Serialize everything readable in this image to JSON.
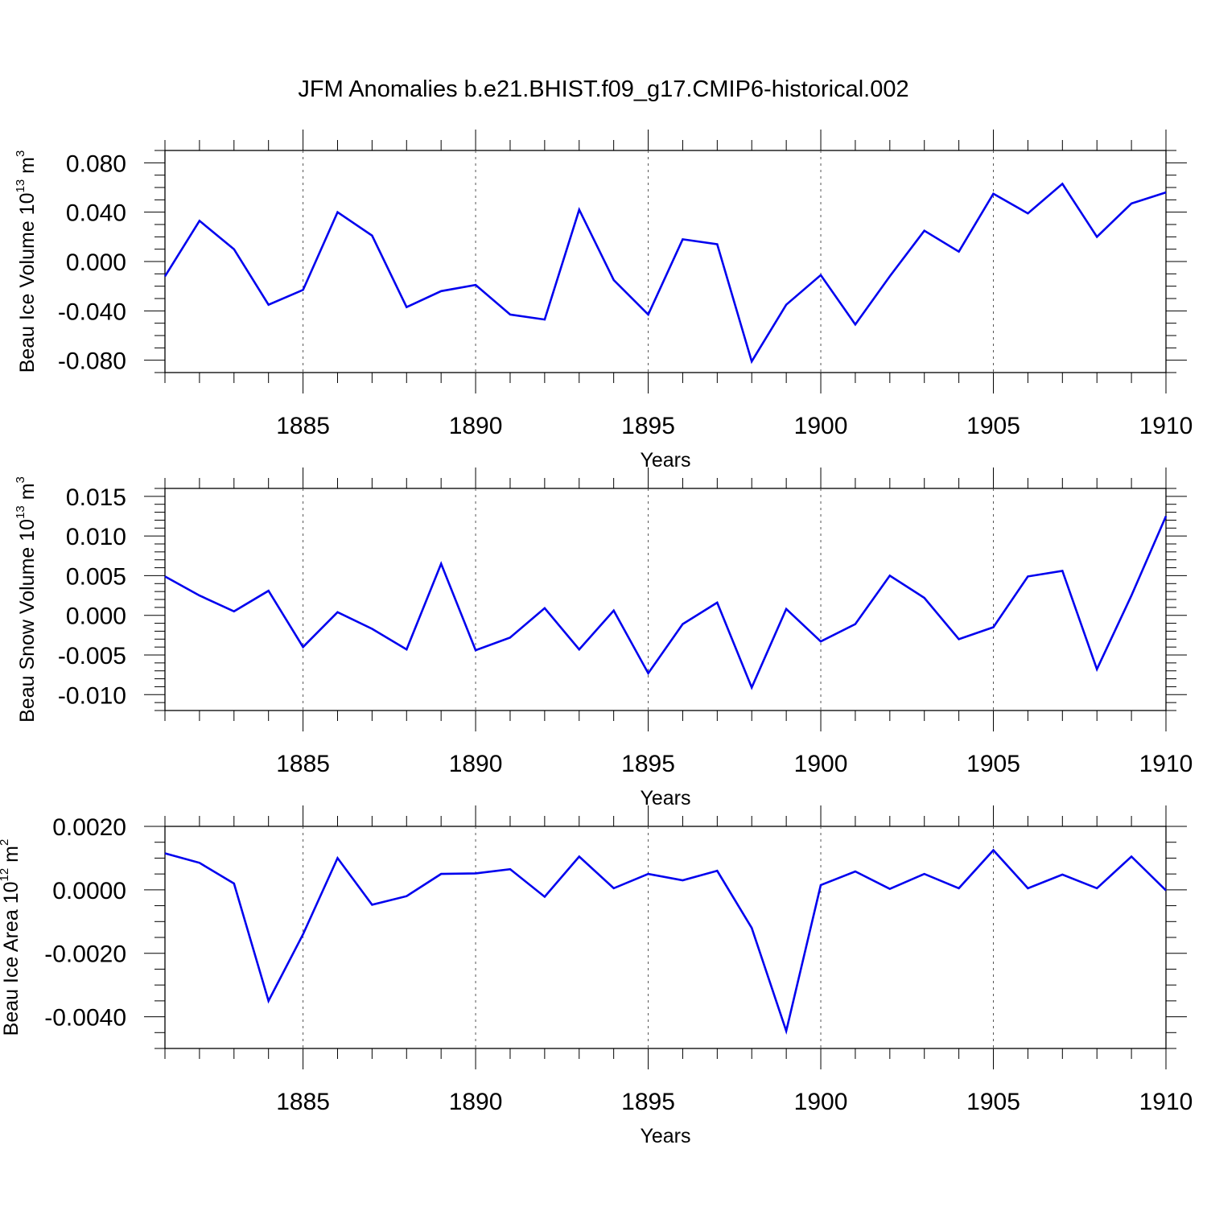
{
  "figure": {
    "title": "JFM Anomalies b.e21.BHIST.f09_g17.CMIP6-historical.002"
  },
  "chart_data": [
    {
      "type": "line",
      "xlabel": "Years",
      "ylabel_main": "Beau Ice Volume 10",
      "ylabel_exp": "13",
      "ylabel_unit": " m",
      "ylabel_unit_exp": "3",
      "xlim": [
        1881,
        1910
      ],
      "ylim": [
        -0.09,
        0.09
      ],
      "x_ticks": [
        1885,
        1890,
        1895,
        1900,
        1905,
        1910
      ],
      "x_tick_labels": [
        "1885",
        "1890",
        "1895",
        "1900",
        "1905",
        "1910"
      ],
      "y_ticks": [
        -0.08,
        -0.04,
        0.0,
        0.04,
        0.08
      ],
      "y_tick_labels": [
        "-0.080",
        "-0.040",
        "0.000",
        "0.040",
        "0.080"
      ],
      "y_minor_step": 0.01,
      "grid": "x-dashed",
      "color": "#0000ee",
      "x": [
        1881,
        1882,
        1883,
        1884,
        1885,
        1886,
        1887,
        1888,
        1889,
        1890,
        1891,
        1892,
        1893,
        1894,
        1895,
        1896,
        1897,
        1898,
        1899,
        1900,
        1901,
        1902,
        1903,
        1904,
        1905,
        1906,
        1907,
        1908,
        1909,
        1910
      ],
      "values": [
        -0.012,
        0.033,
        0.01,
        -0.035,
        -0.023,
        0.04,
        0.021,
        -0.037,
        -0.024,
        -0.019,
        -0.043,
        -0.047,
        0.042,
        -0.015,
        -0.043,
        0.018,
        0.014,
        -0.081,
        -0.035,
        -0.011,
        -0.051,
        -0.012,
        0.025,
        0.008,
        0.055,
        0.039,
        0.063,
        0.02,
        0.047,
        0.056
      ]
    },
    {
      "type": "line",
      "xlabel": "Years",
      "ylabel_main": "Beau Snow Volume 10",
      "ylabel_exp": "13",
      "ylabel_unit": " m",
      "ylabel_unit_exp": "3",
      "xlim": [
        1881,
        1910
      ],
      "ylim": [
        -0.012,
        0.016
      ],
      "x_ticks": [
        1885,
        1890,
        1895,
        1900,
        1905,
        1910
      ],
      "x_tick_labels": [
        "1885",
        "1890",
        "1895",
        "1900",
        "1905",
        "1910"
      ],
      "y_ticks": [
        -0.01,
        -0.005,
        0.0,
        0.005,
        0.01,
        0.015
      ],
      "y_tick_labels": [
        "-0.010",
        "-0.005",
        "0.000",
        "0.005",
        "0.010",
        "0.015"
      ],
      "y_minor_step": 0.001,
      "grid": "x-dashed",
      "color": "#0000ee",
      "x": [
        1881,
        1882,
        1883,
        1884,
        1885,
        1886,
        1887,
        1888,
        1889,
        1890,
        1891,
        1892,
        1893,
        1894,
        1895,
        1896,
        1897,
        1898,
        1899,
        1900,
        1901,
        1902,
        1903,
        1904,
        1905,
        1906,
        1907,
        1908,
        1909,
        1910
      ],
      "values": [
        0.0049,
        0.0025,
        0.0005,
        0.0031,
        -0.004,
        0.0004,
        -0.0017,
        -0.0043,
        0.0065,
        -0.0044,
        -0.0028,
        0.0009,
        -0.0043,
        0.0006,
        -0.0073,
        -0.0011,
        0.0016,
        -0.0091,
        0.0008,
        -0.0033,
        -0.0011,
        0.005,
        0.0022,
        -0.003,
        -0.0015,
        0.0049,
        0.0056,
        -0.0068,
        0.0025,
        0.0125
      ]
    },
    {
      "type": "line",
      "xlabel": "Years",
      "ylabel_main": "Beau Ice Area 10",
      "ylabel_exp": "12",
      "ylabel_unit": " m",
      "ylabel_unit_exp": "2",
      "xlim": [
        1881,
        1910
      ],
      "ylim": [
        -0.005,
        0.002
      ],
      "x_ticks": [
        1885,
        1890,
        1895,
        1900,
        1905,
        1910
      ],
      "x_tick_labels": [
        "1885",
        "1890",
        "1895",
        "1900",
        "1905",
        "1910"
      ],
      "y_ticks": [
        -0.004,
        -0.002,
        0.0,
        0.002
      ],
      "y_tick_labels": [
        "-0.0040",
        "-0.0020",
        "0.0000",
        "0.0020"
      ],
      "y_minor_step": 0.0005,
      "grid": "x-dashed",
      "color": "#0000ee",
      "x": [
        1881,
        1882,
        1883,
        1884,
        1885,
        1886,
        1887,
        1888,
        1889,
        1890,
        1891,
        1892,
        1893,
        1894,
        1895,
        1896,
        1897,
        1898,
        1899,
        1900,
        1901,
        1902,
        1903,
        1904,
        1905,
        1906,
        1907,
        1908,
        1909,
        1910
      ],
      "values": [
        0.00115,
        0.00085,
        0.0002,
        -0.0035,
        -0.0014,
        0.001,
        -0.00047,
        -0.0002,
        0.0005,
        0.00052,
        0.00065,
        -0.00022,
        0.00105,
        5e-05,
        0.0005,
        0.0003,
        0.0006,
        -0.0012,
        -0.00445,
        0.00015,
        0.00058,
        3e-05,
        0.0005,
        5e-05,
        0.00125,
        5e-05,
        0.00048,
        5e-05,
        0.00105,
        -2e-05
      ]
    }
  ]
}
